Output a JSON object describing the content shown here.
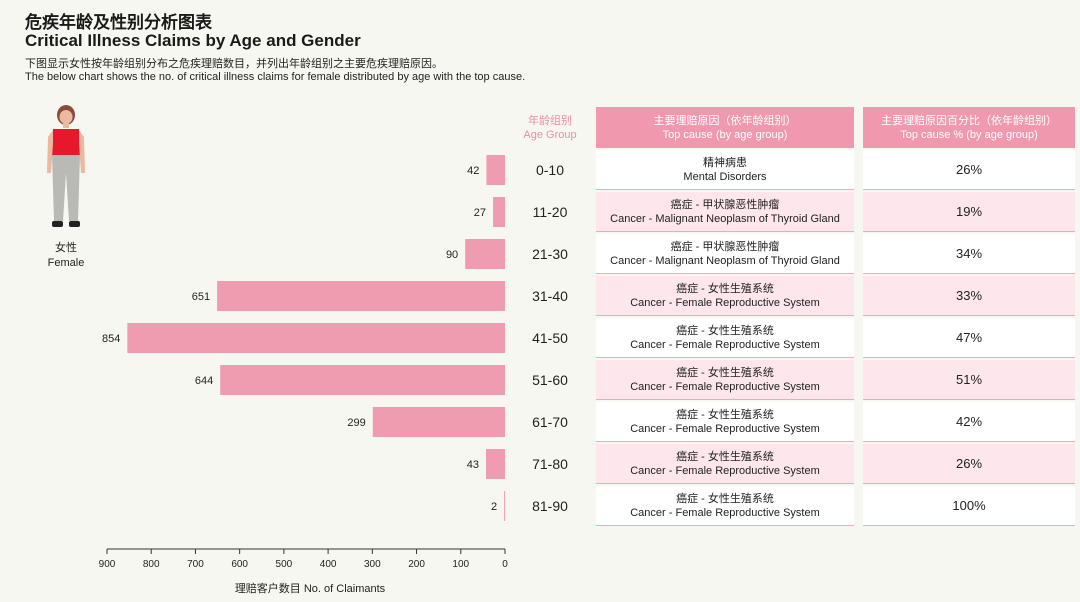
{
  "header": {
    "title_zh": "危疾年龄及性别分析图表",
    "title_en": "Critical Illness Claims by Age and Gender",
    "desc_zh": "下图显示女性按年龄组别分布之危疾理赔数目，并列出年龄组别之主要危疾理赔原因。",
    "desc_en": "The below chart shows the no. of critical illness claims for female distributed by age with the top cause."
  },
  "figure": {
    "label_zh": "女性",
    "label_en": "Female"
  },
  "age_header": {
    "zh": "年龄组别",
    "en": "Age Group"
  },
  "table": {
    "cause_header_zh": "主要理赔原因（依年龄组别）",
    "cause_header_en": "Top cause (by age group)",
    "pct_header_zh": "主要理赔原因百分比（依年龄组别）",
    "pct_header_en": "Top cause % (by age group)"
  },
  "axis": {
    "title": "理赔客户数目 No. of Claimants"
  },
  "colors": {
    "bar": "#ef9bb0",
    "accent": "#ea8fa6",
    "header_bg": "#ef98ae",
    "row_alt": "#fde6ec"
  },
  "chart_data": {
    "type": "bar",
    "orientation": "horizontal",
    "categories": [
      "0-10",
      "11-20",
      "21-30",
      "31-40",
      "41-50",
      "51-60",
      "61-70",
      "71-80",
      "81-90"
    ],
    "values": [
      42,
      27,
      90,
      651,
      854,
      644,
      299,
      43,
      2
    ],
    "xlim": [
      0,
      900
    ],
    "x_ticks": [
      900,
      800,
      700,
      600,
      500,
      400,
      300,
      200,
      100,
      0
    ],
    "xlabel": "理赔客户数目 No. of Claimants",
    "top_cause_zh": [
      "精神病患",
      "癌症 - 甲状腺恶性肿瘤",
      "癌症 - 甲状腺恶性肿瘤",
      "癌症 - 女性生殖系统",
      "癌症 - 女性生殖系统",
      "癌症 - 女性生殖系统",
      "癌症 - 女性生殖系统",
      "癌症 - 女性生殖系统",
      "癌症 - 女性生殖系统"
    ],
    "top_cause_en": [
      "Mental Disorders",
      "Cancer - Malignant Neoplasm of Thyroid Gland",
      "Cancer - Malignant Neoplasm of Thyroid Gland",
      "Cancer - Female Reproductive System",
      "Cancer - Female Reproductive System",
      "Cancer - Female Reproductive System",
      "Cancer - Female Reproductive System",
      "Cancer - Female Reproductive System",
      "Cancer - Female Reproductive System"
    ],
    "top_cause_pct": [
      "26%",
      "19%",
      "34%",
      "33%",
      "47%",
      "51%",
      "42%",
      "26%",
      "100%"
    ]
  }
}
